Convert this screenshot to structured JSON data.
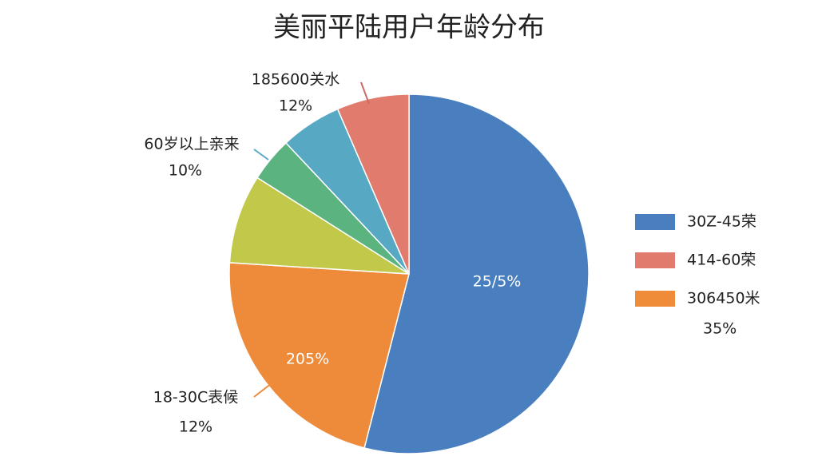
{
  "chart_data": {
    "type": "pie",
    "title": "美丽平陆用户年龄分布",
    "categories": [
      null,
      null,
      null,
      null,
      null,
      null
    ],
    "values": [
      54,
      22,
      8,
      4,
      5.5,
      6.5
    ],
    "colors": [
      "#4a7fbf",
      "#ee8b3a",
      "#c2c94a",
      "#5bb37f",
      "#57a9c3",
      "#e07b6e"
    ],
    "annotations": [
      "25/5%",
      "205%",
      "185600关水",
      "12%",
      "60岁以上亲来",
      "10%",
      "18-30C表候",
      "12%"
    ],
    "legend": [
      {
        "label": "30Z-45荣",
        "color": "#4a7fbf"
      },
      {
        "label": "414-60荣",
        "color": "#e07b6e"
      },
      {
        "label": "306450米",
        "color": "#ef8c3a",
        "sublabel": "35%"
      }
    ]
  }
}
